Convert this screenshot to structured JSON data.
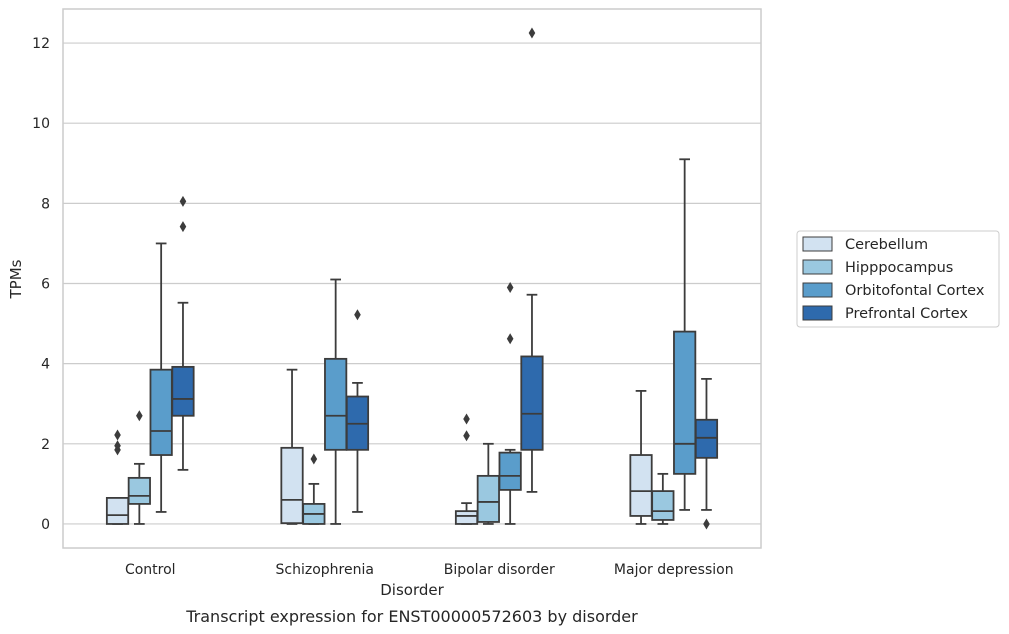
{
  "caption": "Transcript expression for ENST00000572603 by disorder",
  "chart_data": {
    "type": "box",
    "xlabel": "Disorder",
    "ylabel": "TPMs",
    "ylim": [
      -0.6,
      12.85
    ],
    "yticks": [
      0,
      2,
      4,
      6,
      8,
      10,
      12
    ],
    "grid": "horizontal",
    "legend_position": "right",
    "categories": [
      "Control",
      "Schizophrenia",
      "Bipolar disorder",
      "Major depression"
    ],
    "series": [
      {
        "name": "Cerebellum",
        "color": "#d2e2f1",
        "boxes": [
          {
            "whislo": 0.0,
            "q1": 0.0,
            "med": 0.22,
            "q3": 0.65,
            "whishi": 0.65,
            "fliers": [
              1.85,
              1.95,
              2.22
            ]
          },
          {
            "whislo": 0.0,
            "q1": 0.02,
            "med": 0.6,
            "q3": 1.9,
            "whishi": 3.85,
            "fliers": []
          },
          {
            "whislo": 0.0,
            "q1": 0.0,
            "med": 0.2,
            "q3": 0.32,
            "whishi": 0.52,
            "fliers": [
              2.2,
              2.62
            ]
          },
          {
            "whislo": 0.0,
            "q1": 0.2,
            "med": 0.82,
            "q3": 1.72,
            "whishi": 3.32,
            "fliers": []
          }
        ]
      },
      {
        "name": "Hipppocampus",
        "color": "#9ac8e0",
        "boxes": [
          {
            "whislo": 0.0,
            "q1": 0.5,
            "med": 0.7,
            "q3": 1.15,
            "whishi": 1.5,
            "fliers": [
              2.7
            ]
          },
          {
            "whislo": 0.0,
            "q1": 0.0,
            "med": 0.25,
            "q3": 0.5,
            "whishi": 1.0,
            "fliers": [
              1.62
            ]
          },
          {
            "whislo": 0.0,
            "q1": 0.05,
            "med": 0.55,
            "q3": 1.2,
            "whishi": 2.0,
            "fliers": []
          },
          {
            "whislo": 0.0,
            "q1": 0.1,
            "med": 0.32,
            "q3": 0.82,
            "whishi": 1.25,
            "fliers": []
          }
        ]
      },
      {
        "name": "Orbitofontal Cortex",
        "color": "#5a9dcb",
        "boxes": [
          {
            "whislo": 0.3,
            "q1": 1.72,
            "med": 2.32,
            "q3": 3.85,
            "whishi": 7.0,
            "fliers": []
          },
          {
            "whislo": 0.0,
            "q1": 1.85,
            "med": 2.7,
            "q3": 4.12,
            "whishi": 6.1,
            "fliers": []
          },
          {
            "whislo": 0.0,
            "q1": 0.85,
            "med": 1.2,
            "q3": 1.78,
            "whishi": 1.85,
            "fliers": [
              4.62,
              5.9
            ]
          },
          {
            "whislo": 0.35,
            "q1": 1.25,
            "med": 2.0,
            "q3": 4.8,
            "whishi": 9.1,
            "fliers": []
          }
        ]
      },
      {
        "name": "Prefrontal Cortex",
        "color": "#2e6aad",
        "boxes": [
          {
            "whislo": 1.35,
            "q1": 2.7,
            "med": 3.12,
            "q3": 3.92,
            "whishi": 5.52,
            "fliers": [
              7.42,
              8.05
            ]
          },
          {
            "whislo": 0.3,
            "q1": 1.85,
            "med": 2.5,
            "q3": 3.18,
            "whishi": 3.52,
            "fliers": [
              5.22
            ]
          },
          {
            "whislo": 0.8,
            "q1": 1.85,
            "med": 2.75,
            "q3": 4.18,
            "whishi": 5.72,
            "fliers": [
              12.25
            ]
          },
          {
            "whislo": 0.35,
            "q1": 1.65,
            "med": 2.15,
            "q3": 2.6,
            "whishi": 3.62,
            "fliers": [
              0.0
            ]
          }
        ]
      }
    ]
  }
}
